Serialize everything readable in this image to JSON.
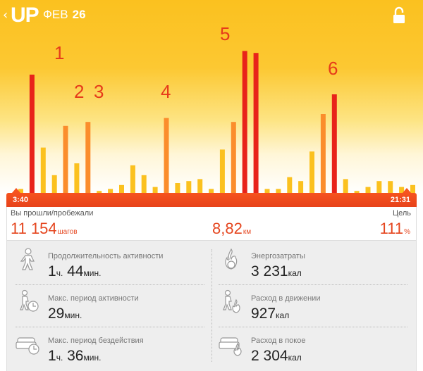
{
  "header": {
    "logo": "UP",
    "month": "ФЕВ",
    "day": "26",
    "lock_icon": "lock-icon",
    "back_icon": "chevron-left-icon"
  },
  "chart_data": {
    "type": "bar",
    "annotations": [
      "1",
      "2",
      "3",
      "4",
      "5",
      "6"
    ],
    "bars": [
      {
        "value": 2,
        "color": "#fbc11f"
      },
      {
        "value": 60,
        "color": "#e8231a"
      },
      {
        "value": 23,
        "color": "#fbc11f"
      },
      {
        "value": 9,
        "color": "#fbc11f"
      },
      {
        "value": 34,
        "color": "#fb8d2c"
      },
      {
        "value": 15,
        "color": "#fbc11f"
      },
      {
        "value": 36,
        "color": "#fb8d2c"
      },
      {
        "value": 1,
        "color": "#fbc11f"
      },
      {
        "value": 2,
        "color": "#fbc11f"
      },
      {
        "value": 4,
        "color": "#fbc11f"
      },
      {
        "value": 14,
        "color": "#fbc11f"
      },
      {
        "value": 9,
        "color": "#fbc11f"
      },
      {
        "value": 3,
        "color": "#fbc11f"
      },
      {
        "value": 38,
        "color": "#fb8d2c"
      },
      {
        "value": 5,
        "color": "#fbc11f"
      },
      {
        "value": 6,
        "color": "#fbc11f"
      },
      {
        "value": 7,
        "color": "#fbc11f"
      },
      {
        "value": 2,
        "color": "#fbc11f"
      },
      {
        "value": 22,
        "color": "#fbc11f"
      },
      {
        "value": 36,
        "color": "#fb8d2c"
      },
      {
        "value": 72,
        "color": "#e8231a"
      },
      {
        "value": 71,
        "color": "#e8231a"
      },
      {
        "value": 2,
        "color": "#fbc11f"
      },
      {
        "value": 2,
        "color": "#fbc11f"
      },
      {
        "value": 8,
        "color": "#fbc11f"
      },
      {
        "value": 6,
        "color": "#fbc11f"
      },
      {
        "value": 21,
        "color": "#fbc11f"
      },
      {
        "value": 40,
        "color": "#fb8d2c"
      },
      {
        "value": 50,
        "color": "#e8231a"
      },
      {
        "value": 7,
        "color": "#fbc11f"
      },
      {
        "value": 1,
        "color": "#fbc11f"
      },
      {
        "value": 3,
        "color": "#fbc11f"
      },
      {
        "value": 6,
        "color": "#fbc11f"
      },
      {
        "value": 6,
        "color": "#fbc11f"
      },
      {
        "value": 3,
        "color": "#fbc11f"
      },
      {
        "value": 4,
        "color": "#fbc11f"
      }
    ]
  },
  "timeline": {
    "start": "3:40",
    "end": "21:31"
  },
  "summary": {
    "steps_label": "Вы прошли/пробежали",
    "goal_label": "Цель",
    "steps_value": "11 154",
    "steps_unit": "шагов",
    "distance_value": "8,82",
    "distance_unit": "км",
    "goal_value": "111",
    "goal_unit": "%"
  },
  "stats": [
    {
      "label": "Продолжительность активности",
      "v1": "1",
      "u1": "ч.",
      "v2": " 44",
      "u2": "мин.",
      "icon": "running-person-icon"
    },
    {
      "label": "Энергозатраты",
      "v1": "3 231",
      "u1": "кал",
      "v2": "",
      "u2": "",
      "icon": "flame-icon"
    },
    {
      "label": "Макс. период активности",
      "v1": "29",
      "u1": "мин.",
      "v2": "",
      "u2": "",
      "icon": "active-timer-icon"
    },
    {
      "label": "Расход в движении",
      "v1": "927",
      "u1": "кал",
      "v2": "",
      "u2": "",
      "icon": "moving-burn-icon"
    },
    {
      "label": "Макс. период бездействия",
      "v1": "1",
      "u1": "ч.",
      "v2": " 36",
      "u2": "мин.",
      "icon": "armchair-timer-icon"
    },
    {
      "label": "Расход в покое",
      "v1": "2 304",
      "u1": "кал",
      "v2": "",
      "u2": "",
      "icon": "armchair-flame-icon"
    }
  ]
}
